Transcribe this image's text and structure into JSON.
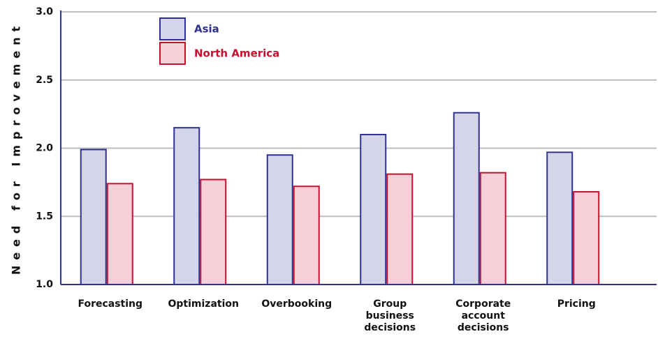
{
  "chart_data": {
    "type": "bar",
    "y_label": "Need for Improvement",
    "categories": [
      "Forecasting",
      "Optimization",
      "Overbooking",
      "Group business decisions",
      "Corporate account decisions",
      "Pricing"
    ],
    "series": [
      {
        "name": "Asia",
        "color": "#d4d5e9",
        "edge": "#2e3192",
        "values": [
          1.99,
          2.15,
          1.95,
          2.1,
          2.26,
          1.97
        ]
      },
      {
        "name": "North America",
        "color": "#f5d0d8",
        "edge": "#c8102e",
        "values": [
          1.74,
          1.77,
          1.72,
          1.81,
          1.82,
          1.68
        ]
      }
    ],
    "ylim": [
      1.0,
      3.0
    ],
    "yticks": [
      {
        "value": 1.0,
        "label": "1.0"
      },
      {
        "value": 1.5,
        "label": "1.5"
      },
      {
        "value": 2.0,
        "label": "2.0"
      },
      {
        "value": 2.5,
        "label": "2.5"
      },
      {
        "value": 3.0,
        "label": "3.0"
      }
    ],
    "grid": true
  }
}
